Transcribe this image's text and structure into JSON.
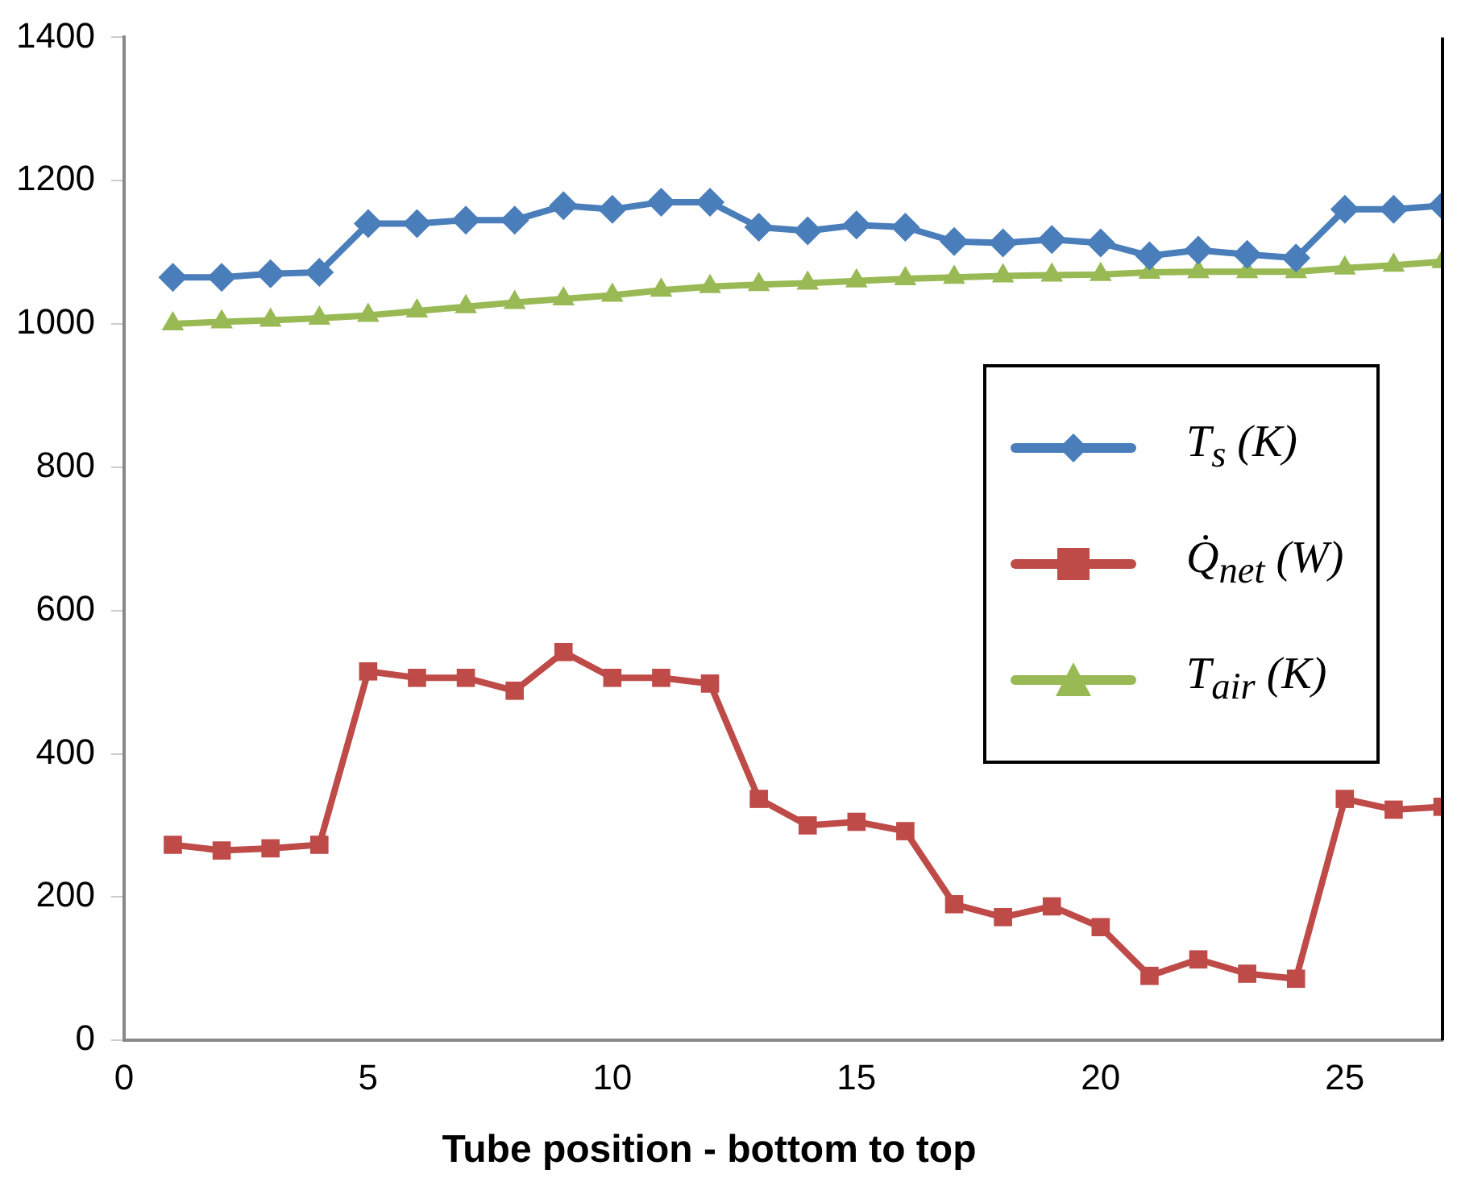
{
  "chart_data": {
    "type": "line",
    "xlabel": "Tube position - bottom to top",
    "x": [
      1,
      2,
      3,
      4,
      5,
      6,
      7,
      8,
      9,
      10,
      11,
      12,
      13,
      14,
      15,
      16,
      17,
      18,
      19,
      20,
      21,
      22,
      23,
      24,
      25,
      26,
      27
    ],
    "xlim": [
      0,
      27
    ],
    "xticks": [
      0,
      5,
      10,
      15,
      20,
      25
    ],
    "ylim": [
      0,
      1400
    ],
    "yticks": [
      0,
      200,
      400,
      600,
      800,
      1000,
      1200,
      1400
    ],
    "grid": false,
    "legend": "right",
    "line_style": "solid",
    "series": [
      {
        "name": "T$_{s}$ (K)",
        "color": "#4a7ebb",
        "marker": "diamond",
        "values": [
          1065,
          1065,
          1070,
          1072,
          1140,
          1140,
          1145,
          1145,
          1165,
          1160,
          1170,
          1170,
          1135,
          1130,
          1138,
          1135,
          1115,
          1113,
          1118,
          1113,
          1095,
          1103,
          1097,
          1092,
          1160,
          1160,
          1165
        ]
      },
      {
        "name": "Q̇$_{net}$ (W)",
        "color": "#be4b48",
        "marker": "square",
        "values": [
          273,
          265,
          268,
          273,
          515,
          506,
          506,
          488,
          542,
          506,
          506,
          498,
          337,
          300,
          305,
          292,
          190,
          172,
          187,
          158,
          90,
          113,
          93,
          86,
          337,
          322,
          326
        ]
      },
      {
        "name": "T$_{air}$ (K)",
        "color": "#98b954",
        "marker": "triangle",
        "values": [
          1000,
          1003,
          1005,
          1008,
          1012,
          1018,
          1024,
          1030,
          1035,
          1040,
          1047,
          1052,
          1055,
          1057,
          1060,
          1063,
          1065,
          1067,
          1068,
          1069,
          1072,
          1073,
          1073,
          1073,
          1078,
          1082,
          1087
        ]
      }
    ]
  }
}
